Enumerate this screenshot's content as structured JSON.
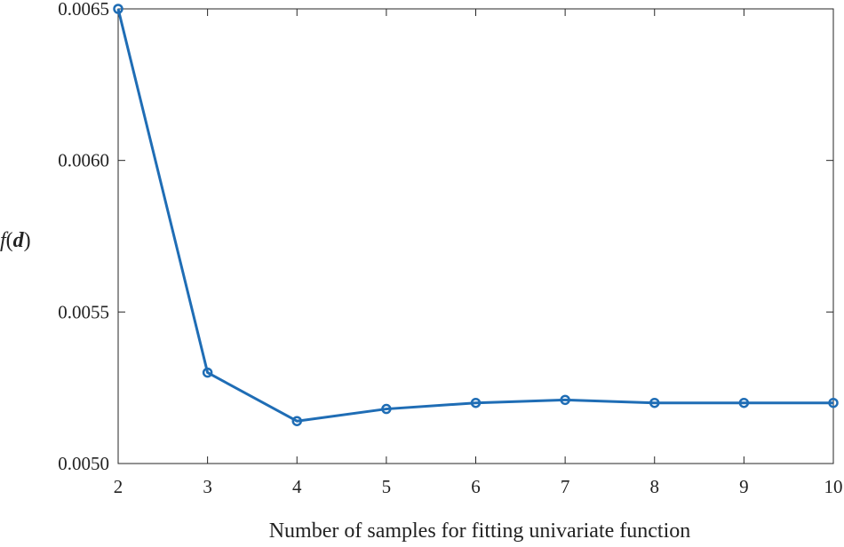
{
  "chart_data": {
    "type": "line",
    "xlabel": "Number of samples for fitting univariate function",
    "ylabel": {
      "fn": "f",
      "open": "(",
      "var": "d",
      "close": ")"
    },
    "x": [
      2,
      3,
      4,
      5,
      6,
      7,
      8,
      9,
      10
    ],
    "series": [
      {
        "values": [
          0.0065,
          0.0053,
          0.00514,
          0.00518,
          0.0052,
          0.00521,
          0.0052,
          0.0052,
          0.0052
        ],
        "color": "#1f6db5",
        "marker": "circle"
      }
    ],
    "xlim": [
      2,
      10
    ],
    "ylim": [
      0.005,
      0.0065
    ],
    "xticks": [
      2,
      3,
      4,
      5,
      6,
      7,
      8,
      9,
      10
    ],
    "xtick_labels": [
      "2",
      "3",
      "4",
      "5",
      "6",
      "7",
      "8",
      "9",
      "10"
    ],
    "yticks": [
      0.005,
      0.0055,
      0.006,
      0.0065
    ],
    "ytick_labels": [
      "0.0050",
      "0.0055",
      "0.0060",
      "0.0065"
    ],
    "grid": false,
    "box": true
  }
}
